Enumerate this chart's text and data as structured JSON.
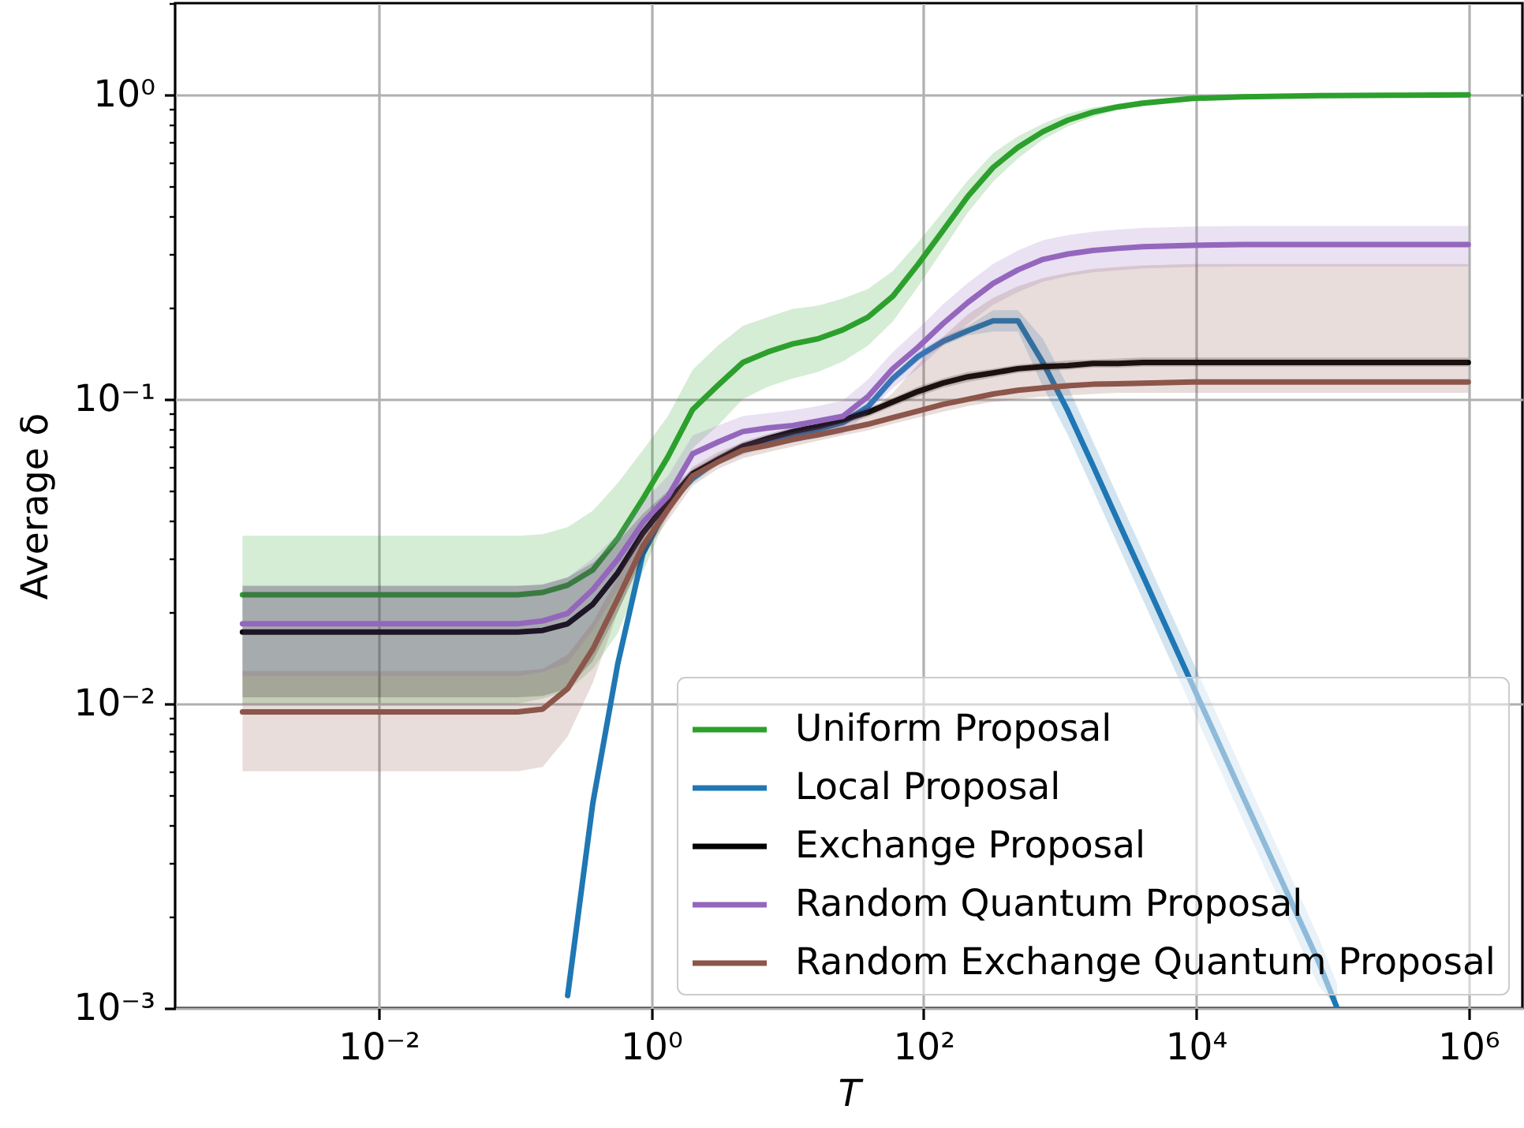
{
  "chart_data": {
    "type": "line",
    "xlabel": "T",
    "ylabel": "Average δ",
    "log": "xy",
    "grid": true,
    "legend": "bottom right",
    "xlim": [
      0.00032,
      2500000
    ],
    "ylim": [
      0.001,
      2
    ],
    "xticks": [
      {
        "value": 0.01,
        "label": "10⁻²"
      },
      {
        "value": 1,
        "label": "10⁰"
      },
      {
        "value": 100,
        "label": "10²"
      },
      {
        "value": 10000,
        "label": "10⁴"
      },
      {
        "value": 1000000,
        "label": "10⁶"
      }
    ],
    "yticks": [
      {
        "value": 0.001,
        "label": "10⁻³"
      },
      {
        "value": 0.002,
        "label": null
      },
      {
        "value": 0.003,
        "label": null
      },
      {
        "value": 0.004,
        "label": null
      },
      {
        "value": 0.005,
        "label": null
      },
      {
        "value": 0.006,
        "label": null
      },
      {
        "value": 0.007,
        "label": null
      },
      {
        "value": 0.008,
        "label": null
      },
      {
        "value": 0.009,
        "label": null
      },
      {
        "value": 0.01,
        "label": "10⁻²"
      },
      {
        "value": 0.02,
        "label": null
      },
      {
        "value": 0.03,
        "label": null
      },
      {
        "value": 0.04,
        "label": null
      },
      {
        "value": 0.05,
        "label": null
      },
      {
        "value": 0.06,
        "label": null
      },
      {
        "value": 0.07,
        "label": null
      },
      {
        "value": 0.08,
        "label": null
      },
      {
        "value": 0.09,
        "label": null
      },
      {
        "value": 0.1,
        "label": "10⁻¹"
      },
      {
        "value": 0.2,
        "label": null
      },
      {
        "value": 0.3,
        "label": null
      },
      {
        "value": 0.4,
        "label": null
      },
      {
        "value": 0.5,
        "label": null
      },
      {
        "value": 0.6,
        "label": null
      },
      {
        "value": 0.7,
        "label": null
      },
      {
        "value": 0.8,
        "label": null
      },
      {
        "value": 0.9,
        "label": null
      },
      {
        "value": 1,
        "label": "10⁰"
      },
      {
        "value": 2,
        "label": null
      }
    ],
    "x": [
      0.001,
      0.0083,
      0.0687,
      0.105,
      0.16,
      0.244,
      0.373,
      0.569,
      0.869,
      1.33,
      2.02,
      3.09,
      4.71,
      7.2,
      11,
      16.8,
      25.6,
      39.1,
      59.6,
      91,
      139,
      212,
      324,
      494,
      754,
      1150,
      1760,
      2680,
      4090,
      9540,
      22200,
      79100,
      281000,
      1000000
    ],
    "series": [
      {
        "name": "Uniform Proposal",
        "color": "#2ca02c",
        "values": [
          0.0228,
          0.0228,
          0.0228,
          0.0228,
          0.0232,
          0.0245,
          0.0275,
          0.0349,
          0.047,
          0.0647,
          0.0925,
          0.111,
          0.132,
          0.143,
          0.152,
          0.158,
          0.169,
          0.186,
          0.218,
          0.277,
          0.358,
          0.464,
          0.577,
          0.672,
          0.757,
          0.826,
          0.877,
          0.913,
          0.939,
          0.973,
          0.985,
          0.993,
          0.996,
          1.0
        ],
        "upper": [
          0.0356,
          0.0356,
          0.0356,
          0.0356,
          0.036,
          0.038,
          0.043,
          0.053,
          0.068,
          0.088,
          0.125,
          0.15,
          0.174,
          0.186,
          0.198,
          0.203,
          0.214,
          0.23,
          0.264,
          0.327,
          0.413,
          0.523,
          0.643,
          0.731,
          0.804,
          0.867,
          0.909,
          0.935,
          0.961,
          0.985,
          0.99,
          0.996,
          0.998,
          1.0
        ],
        "lower": [
          0.01,
          0.01,
          0.01,
          0.01,
          0.0104,
          0.011,
          0.013,
          0.017,
          0.027,
          0.042,
          0.069,
          0.082,
          0.1,
          0.11,
          0.117,
          0.123,
          0.133,
          0.15,
          0.18,
          0.234,
          0.31,
          0.411,
          0.518,
          0.618,
          0.713,
          0.787,
          0.846,
          0.892,
          0.918,
          0.961,
          0.98,
          0.99,
          0.994,
          1.0
        ]
      },
      {
        "name": "Local Proposal",
        "color": "#1f77b4",
        "x": [
          0.244,
          0.373,
          0.569,
          0.869,
          1.33,
          2.02,
          3.09,
          4.71,
          7.2,
          11,
          16.8,
          25.6,
          39.1,
          59.6,
          91,
          139,
          212,
          324,
          494,
          754,
          1150,
          1760,
          2680,
          4090,
          9540,
          22200,
          79100,
          109000
        ],
        "values": [
          0.0011,
          0.0047,
          0.0135,
          0.031,
          0.045,
          0.055,
          0.063,
          0.068,
          0.073,
          0.0765,
          0.0795,
          0.0838,
          0.0944,
          0.117,
          0.138,
          0.155,
          0.168,
          0.181,
          0.181,
          0.132,
          0.0914,
          0.0604,
          0.0398,
          0.0263,
          0.0114,
          0.00496,
          0.00143,
          0.001
        ],
        "upper": [
          0.00116,
          0.0049,
          0.014,
          0.0323,
          0.0466,
          0.057,
          0.0652,
          0.0704,
          0.0756,
          0.0792,
          0.0823,
          0.0867,
          0.0977,
          0.121,
          0.143,
          0.16,
          0.174,
          0.196,
          0.196,
          0.158,
          0.11,
          0.0725,
          0.0478,
          0.0316,
          0.0137,
          0.00595,
          0.00172,
          0.0012
        ],
        "lower": [
          0.00104,
          0.0045,
          0.013,
          0.0298,
          0.0434,
          0.053,
          0.0608,
          0.0656,
          0.0705,
          0.0738,
          0.0768,
          0.081,
          0.0912,
          0.113,
          0.133,
          0.15,
          0.162,
          0.167,
          0.167,
          0.11,
          0.0762,
          0.0503,
          0.0332,
          0.0219,
          0.0095,
          0.00413,
          0.00119,
          0.001
        ]
      },
      {
        "name": "Exchange Proposal",
        "color": "#000000",
        "values": [
          0.0172,
          0.0172,
          0.0172,
          0.0172,
          0.0174,
          0.0183,
          0.0212,
          0.0269,
          0.0363,
          0.0461,
          0.057,
          0.0634,
          0.07,
          0.0743,
          0.0783,
          0.0814,
          0.0855,
          0.0906,
          0.098,
          0.106,
          0.113,
          0.1185,
          0.122,
          0.126,
          0.128,
          0.129,
          0.131,
          0.131,
          0.132,
          0.132,
          0.132,
          0.132,
          0.132,
          0.132
        ],
        "upper": [
          0.0244,
          0.0244,
          0.0244,
          0.0244,
          0.0246,
          0.026,
          0.029,
          0.034,
          0.042,
          0.05,
          0.059,
          0.0656,
          0.0725,
          0.0769,
          0.081,
          0.0842,
          0.0885,
          0.0938,
          0.101,
          0.11,
          0.117,
          0.123,
          0.126,
          0.13,
          0.132,
          0.134,
          0.135,
          0.136,
          0.137,
          0.137,
          0.137,
          0.137,
          0.137,
          0.137
        ],
        "lower": [
          0.0105,
          0.0105,
          0.0105,
          0.0105,
          0.0106,
          0.0112,
          0.0138,
          0.02,
          0.03,
          0.042,
          0.0551,
          0.0612,
          0.0676,
          0.0718,
          0.0756,
          0.0786,
          0.0826,
          0.0875,
          0.0947,
          0.102,
          0.109,
          0.114,
          0.118,
          0.122,
          0.124,
          0.125,
          0.127,
          0.127,
          0.128,
          0.128,
          0.128,
          0.128,
          0.128,
          0.128
        ]
      },
      {
        "name": "Random Quantum Proposal",
        "color": "#9467bd",
        "values": [
          0.0183,
          0.0183,
          0.0183,
          0.0183,
          0.0187,
          0.0198,
          0.0237,
          0.0298,
          0.0393,
          0.048,
          0.0662,
          0.0723,
          0.0783,
          0.0805,
          0.082,
          0.0848,
          0.0879,
          0.102,
          0.126,
          0.148,
          0.177,
          0.208,
          0.24,
          0.266,
          0.288,
          0.3,
          0.308,
          0.313,
          0.317,
          0.3205,
          0.322,
          0.322,
          0.322,
          0.322
        ],
        "upper": [
          0.0243,
          0.0243,
          0.0243,
          0.0243,
          0.0247,
          0.026,
          0.03,
          0.036,
          0.046,
          0.056,
          0.076,
          0.082,
          0.088,
          0.09,
          0.092,
          0.095,
          0.099,
          0.116,
          0.143,
          0.17,
          0.205,
          0.241,
          0.278,
          0.308,
          0.333,
          0.346,
          0.355,
          0.361,
          0.365,
          0.369,
          0.371,
          0.371,
          0.371,
          0.371
        ],
        "lower": [
          0.0123,
          0.0123,
          0.0123,
          0.0123,
          0.0127,
          0.0136,
          0.0174,
          0.0236,
          0.033,
          0.041,
          0.058,
          0.064,
          0.069,
          0.071,
          0.072,
          0.075,
          0.077,
          0.09,
          0.109,
          0.126,
          0.15,
          0.177,
          0.204,
          0.225,
          0.243,
          0.254,
          0.261,
          0.265,
          0.269,
          0.272,
          0.273,
          0.273,
          0.273,
          0.273
        ]
      },
      {
        "name": "Random Exchange Quantum Proposal",
        "color": "#8c564b",
        "values": [
          0.0094,
          0.0094,
          0.0094,
          0.0094,
          0.0096,
          0.0112,
          0.0151,
          0.0221,
          0.0329,
          0.0434,
          0.056,
          0.0622,
          0.068,
          0.0706,
          0.0738,
          0.0764,
          0.0795,
          0.0828,
          0.0871,
          0.0914,
          0.0962,
          0.1,
          0.104,
          0.107,
          0.109,
          0.1107,
          0.112,
          0.1124,
          0.113,
          0.114,
          0.114,
          0.114,
          0.114,
          0.114
        ],
        "upper": [
          0.0128,
          0.0128,
          0.0128,
          0.0128,
          0.013,
          0.0145,
          0.0185,
          0.026,
          0.037,
          0.047,
          0.06,
          0.067,
          0.072,
          0.075,
          0.078,
          0.081,
          0.084,
          0.09,
          0.105,
          0.13,
          0.16,
          0.19,
          0.215,
          0.235,
          0.25,
          0.26,
          0.268,
          0.272,
          0.275,
          0.278,
          0.278,
          0.278,
          0.278,
          0.278
        ],
        "lower": [
          0.006,
          0.006,
          0.006,
          0.006,
          0.0062,
          0.0078,
          0.0117,
          0.02,
          0.0305,
          0.04,
          0.052,
          0.059,
          0.064,
          0.067,
          0.07,
          0.073,
          0.076,
          0.079,
          0.083,
          0.087,
          0.091,
          0.095,
          0.098,
          0.1,
          0.102,
          0.103,
          0.104,
          0.105,
          0.105,
          0.105,
          0.105,
          0.105,
          0.105,
          0.105
        ]
      }
    ]
  }
}
